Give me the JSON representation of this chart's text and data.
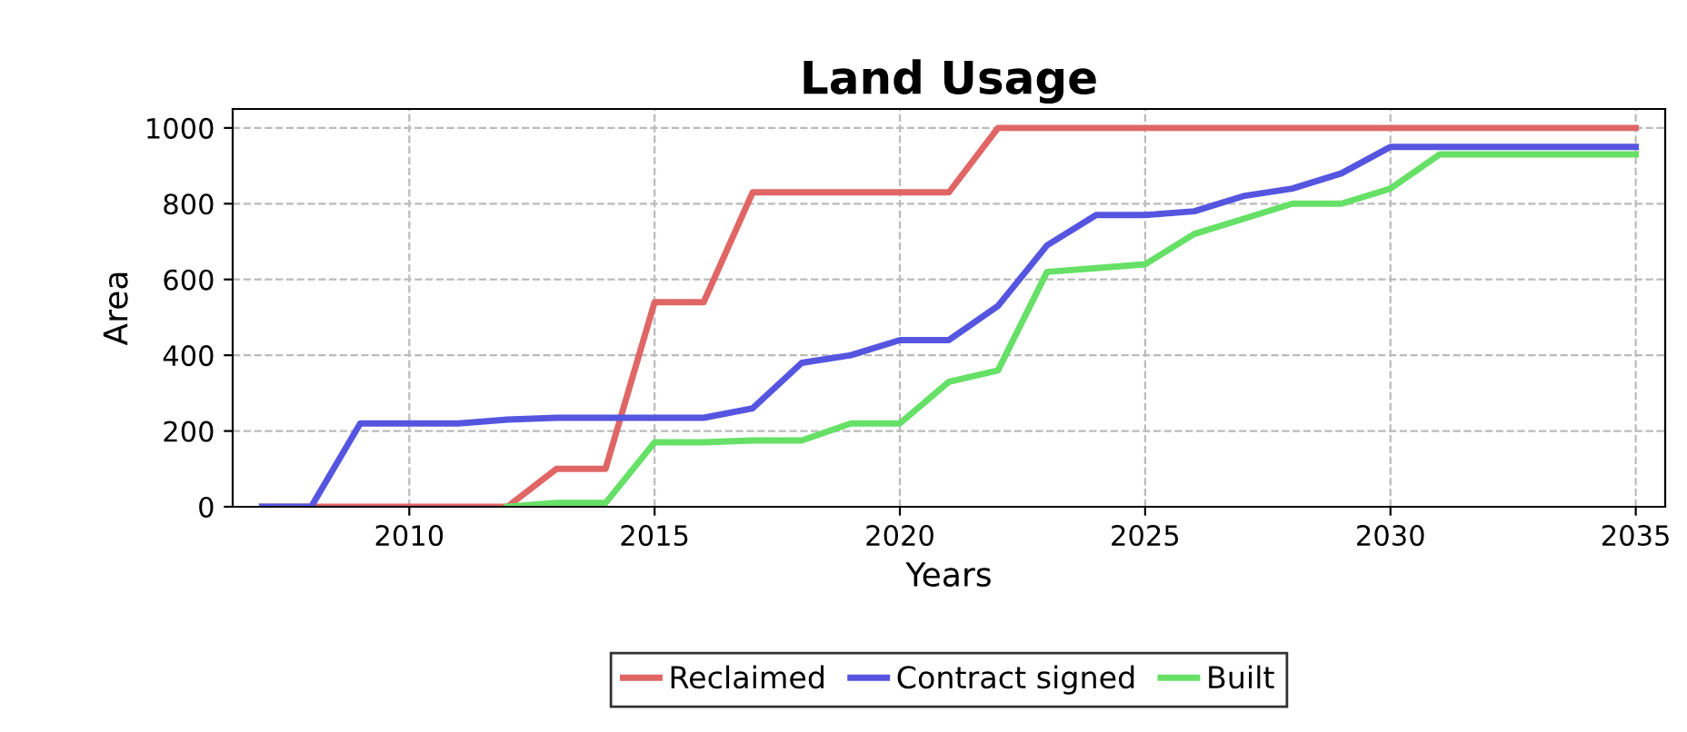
{
  "chart_data": {
    "type": "line",
    "title": "Land Usage",
    "xlabel": "Years",
    "ylabel": "Area",
    "x": [
      2007,
      2008,
      2009,
      2010,
      2011,
      2012,
      2013,
      2014,
      2015,
      2016,
      2017,
      2018,
      2019,
      2020,
      2021,
      2022,
      2023,
      2024,
      2025,
      2026,
      2027,
      2028,
      2029,
      2030,
      2031,
      2032,
      2033,
      2034,
      2035
    ],
    "series": [
      {
        "name": "Reclaimed",
        "color": "#e06666",
        "values": [
          0,
          0,
          0,
          0,
          0,
          0,
          100,
          100,
          540,
          540,
          830,
          830,
          830,
          830,
          830,
          1000,
          1000,
          1000,
          1000,
          1000,
          1000,
          1000,
          1000,
          1000,
          1000,
          1000,
          1000,
          1000,
          1000
        ]
      },
      {
        "name": "Contract signed",
        "color": "#5555e0",
        "values": [
          0,
          0,
          220,
          220,
          220,
          230,
          235,
          235,
          235,
          235,
          260,
          380,
          400,
          440,
          440,
          530,
          690,
          770,
          770,
          780,
          820,
          840,
          880,
          950,
          950,
          950,
          950,
          950,
          950
        ]
      },
      {
        "name": "Built",
        "color": "#66e066",
        "values": [
          null,
          null,
          null,
          null,
          null,
          0,
          10,
          10,
          170,
          170,
          175,
          175,
          220,
          220,
          330,
          360,
          620,
          630,
          640,
          720,
          760,
          800,
          800,
          840,
          930,
          930,
          930,
          930,
          930
        ]
      }
    ],
    "xlim": [
      2006.4,
      2035.6
    ],
    "xticks": [
      2010,
      2015,
      2020,
      2025,
      2030,
      2035
    ],
    "ylim": [
      0,
      1050
    ],
    "yticks": [
      0,
      200,
      400,
      600,
      800,
      1000
    ],
    "grid": true,
    "legend": "bottom",
    "marker": "none",
    "line_style": "solid"
  }
}
